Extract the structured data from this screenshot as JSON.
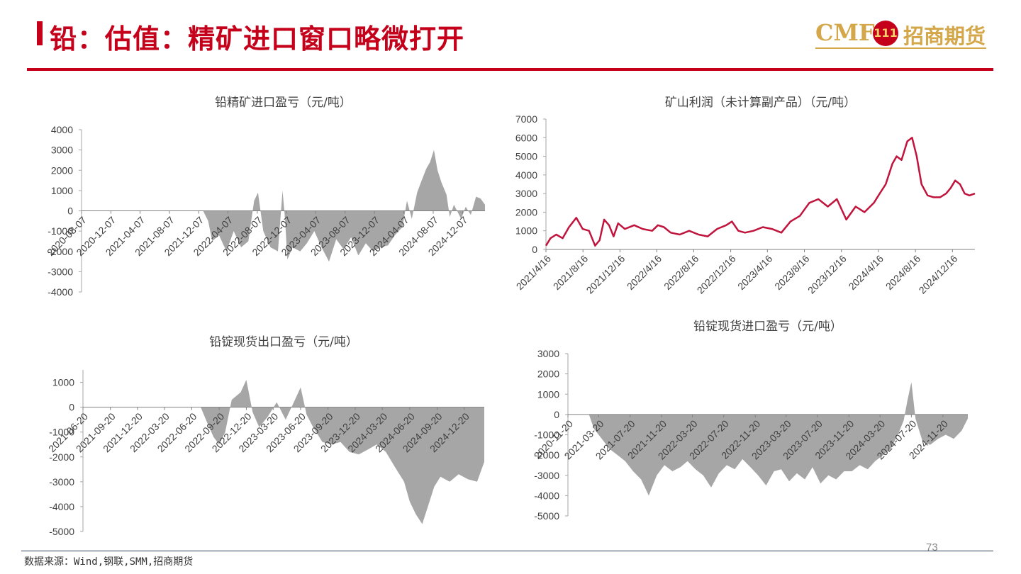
{
  "header": {
    "title": "铅：估值：精矿进口窗口略微打开",
    "logo_text": "CMF",
    "logo_emblem": "111",
    "logo_company": "招商期货"
  },
  "footer": {
    "source": "数据来源：Wind,钢联,SMM,招商期货",
    "page_number": "73"
  },
  "colors": {
    "accent": "#c4001a",
    "logo_gold": "#d4a84a",
    "area_fill": "#a6a6a6",
    "line": "#c0143c"
  },
  "chart_data": [
    {
      "id": "ore-import",
      "type": "area",
      "title": "铅精矿进口盈亏（元/吨）",
      "xlabel": "",
      "ylabel": "",
      "ylim": [
        -4000,
        4000
      ],
      "y_ticks": [
        4000,
        3000,
        2000,
        1000,
        0,
        -1000,
        -2000,
        -3000,
        -4000
      ],
      "x_ticks": [
        "2020-08-07",
        "2020-12-07",
        "2021-04-07",
        "2021-08-07",
        "2021-12-07",
        "2022-04-07",
        "2022-08-07",
        "2022-12-07",
        "2023-04-07",
        "2023-08-07",
        "2023-12-07",
        "2024-04-07",
        "2024-08-07",
        "2024-12-07"
      ],
      "x_range": [
        "2020-08-07",
        "2025-03-10"
      ],
      "grid": false,
      "x": [
        "2020-08-07",
        "2021-12-25",
        "2022-01-15",
        "2022-02-01",
        "2022-03-01",
        "2022-04-01",
        "2022-05-01",
        "2022-06-01",
        "2022-07-01",
        "2022-07-25",
        "2022-08-10",
        "2022-09-01",
        "2022-10-01",
        "2022-11-01",
        "2022-11-20",
        "2022-12-01",
        "2022-12-10",
        "2023-01-01",
        "2023-02-01",
        "2023-03-01",
        "2023-04-01",
        "2023-05-01",
        "2023-06-01",
        "2023-07-01",
        "2023-08-01",
        "2023-09-01",
        "2023-10-01",
        "2023-11-01",
        "2023-12-01",
        "2024-01-01",
        "2024-02-01",
        "2024-03-01",
        "2024-04-01",
        "2024-04-20",
        "2024-05-10",
        "2024-06-01",
        "2024-06-20",
        "2024-07-10",
        "2024-07-25",
        "2024-08-10",
        "2024-08-25",
        "2024-09-10",
        "2024-10-01",
        "2024-10-15",
        "2024-11-01",
        "2024-12-01",
        "2024-12-20",
        "2025-01-10",
        "2025-02-01",
        "2025-02-20",
        "2025-03-10"
      ],
      "values": [
        0,
        0,
        -500,
        -1500,
        -1200,
        -2000,
        -1000,
        -1800,
        -1500,
        500,
        900,
        -1000,
        -1800,
        -2000,
        1000,
        -500,
        -2400,
        -1800,
        -2000,
        -1600,
        -1000,
        -1800,
        -2500,
        -1400,
        -1900,
        -1300,
        -2200,
        -1600,
        -2000,
        -1800,
        -1700,
        -1200,
        -800,
        500,
        -400,
        900,
        1500,
        2100,
        2400,
        3000,
        2000,
        1400,
        800,
        -300,
        300,
        -400,
        200,
        -200,
        700,
        600,
        300
      ]
    },
    {
      "id": "mine-profit",
      "type": "line",
      "title": "矿山利润（未计算副产品）（元/吨）",
      "xlabel": "",
      "ylabel": "",
      "ylim": [
        0,
        7000
      ],
      "y_ticks": [
        7000,
        6000,
        5000,
        4000,
        3000,
        2000,
        1000,
        0
      ],
      "x_ticks": [
        "2021/4/16",
        "2021/8/16",
        "2021/12/16",
        "2022/4/16",
        "2022/8/16",
        "2022/12/16",
        "2023/4/16",
        "2023/8/16",
        "2023/12/16",
        "2024/4/16",
        "2024/8/16",
        "2024/12/16"
      ],
      "x_range": [
        "2021-04-16",
        "2025-02-28"
      ],
      "grid": false,
      "x": [
        "2021-04-16",
        "2021-05-01",
        "2021-05-20",
        "2021-06-10",
        "2021-07-01",
        "2021-07-25",
        "2021-08-15",
        "2021-09-05",
        "2021-09-25",
        "2021-10-10",
        "2021-10-25",
        "2021-11-10",
        "2021-11-25",
        "2021-12-10",
        "2022-01-01",
        "2022-02-01",
        "2022-03-01",
        "2022-04-01",
        "2022-04-20",
        "2022-05-10",
        "2022-06-01",
        "2022-07-01",
        "2022-08-01",
        "2022-09-01",
        "2022-10-01",
        "2022-11-01",
        "2022-12-01",
        "2022-12-20",
        "2023-01-10",
        "2023-02-01",
        "2023-03-01",
        "2023-04-01",
        "2023-05-01",
        "2023-06-01",
        "2023-07-01",
        "2023-08-01",
        "2023-09-01",
        "2023-10-01",
        "2023-11-01",
        "2023-12-01",
        "2024-01-01",
        "2024-02-01",
        "2024-03-01",
        "2024-04-01",
        "2024-04-20",
        "2024-05-10",
        "2024-06-01",
        "2024-06-15",
        "2024-07-01",
        "2024-07-20",
        "2024-08-05",
        "2024-08-20",
        "2024-09-05",
        "2024-09-25",
        "2024-10-15",
        "2024-11-05",
        "2024-11-25",
        "2024-12-10",
        "2024-12-25",
        "2025-01-10",
        "2025-01-25",
        "2025-02-10",
        "2025-02-28"
      ],
      "values": [
        200,
        600,
        800,
        600,
        1200,
        1700,
        1100,
        1000,
        200,
        500,
        1600,
        1300,
        700,
        1400,
        1100,
        1300,
        1100,
        1000,
        1300,
        1200,
        900,
        800,
        1000,
        800,
        700,
        1100,
        1300,
        1500,
        1000,
        900,
        1000,
        1200,
        1100,
        900,
        1500,
        1800,
        2500,
        2700,
        2300,
        2700,
        1600,
        2300,
        2000,
        2500,
        3000,
        3500,
        4600,
        5000,
        4800,
        5800,
        6000,
        5000,
        3500,
        2900,
        2800,
        2800,
        3000,
        3300,
        3700,
        3500,
        3000,
        2900,
        3000
      ]
    },
    {
      "id": "ingot-export",
      "type": "area",
      "title": "铅锭现货出口盈亏（元/吨）",
      "xlabel": "",
      "ylabel": "",
      "ylim": [
        -5000,
        1500
      ],
      "y_ticks": [
        1000,
        0,
        -1000,
        -2000,
        -3000,
        -4000,
        -5000
      ],
      "x_ticks": [
        "2021-06-20",
        "2021-09-20",
        "2021-12-20",
        "2022-03-20",
        "2022-06-20",
        "2022-09-20",
        "2022-12-20",
        "2023-03-20",
        "2023-06-20",
        "2023-09-20",
        "2023-12-20",
        "2024-03-20",
        "2024-06-20",
        "2024-09-20",
        "2024-12-20"
      ],
      "x_range": [
        "2021-06-20",
        "2025-02-25"
      ],
      "grid": false,
      "x": [
        "2021-06-20",
        "2022-07-20",
        "2022-08-10",
        "2022-09-01",
        "2022-09-20",
        "2022-10-10",
        "2022-11-01",
        "2022-12-01",
        "2022-12-20",
        "2023-01-10",
        "2023-02-01",
        "2023-03-01",
        "2023-04-01",
        "2023-05-01",
        "2023-06-01",
        "2023-06-20",
        "2023-07-10",
        "2023-08-01",
        "2023-09-01",
        "2023-10-01",
        "2023-11-01",
        "2023-12-01",
        "2024-01-01",
        "2024-02-01",
        "2024-03-01",
        "2024-04-01",
        "2024-05-01",
        "2024-06-01",
        "2024-06-20",
        "2024-07-10",
        "2024-08-01",
        "2024-08-20",
        "2024-09-10",
        "2024-10-01",
        "2024-11-01",
        "2024-12-01",
        "2025-01-01",
        "2025-02-01",
        "2025-02-25"
      ],
      "values": [
        0,
        0,
        -600,
        -1200,
        -1500,
        -1000,
        300,
        600,
        1100,
        -200,
        -800,
        -400,
        200,
        -500,
        300,
        800,
        -300,
        -800,
        -1400,
        -1500,
        -1400,
        -1800,
        -1900,
        -1700,
        -1500,
        -1800,
        -2400,
        -3000,
        -3800,
        -4300,
        -4700,
        -4000,
        -3200,
        -2800,
        -3000,
        -2700,
        -2900,
        -3000,
        -2200
      ]
    },
    {
      "id": "ingot-import",
      "type": "area",
      "title": "铅锭现货进口盈亏（元/吨）",
      "xlabel": "",
      "ylabel": "",
      "ylim": [
        -5000,
        3000
      ],
      "y_ticks": [
        3000,
        2000,
        1000,
        0,
        -1000,
        -2000,
        -3000,
        -4000,
        -5000
      ],
      "x_ticks": [
        "2020-11-20",
        "2021-03-20",
        "2021-07-20",
        "2021-11-20",
        "2022-03-20",
        "2022-07-20",
        "2022-11-20",
        "2023-03-20",
        "2023-07-20",
        "2023-11-20",
        "2024-03-20",
        "2024-07-20",
        "2024-11-20"
      ],
      "x_range": [
        "2020-11-20",
        "2025-02-25"
      ],
      "grid": false,
      "x": [
        "2020-11-20",
        "2021-02-10",
        "2021-03-01",
        "2021-04-01",
        "2021-05-01",
        "2021-06-01",
        "2021-07-01",
        "2021-08-01",
        "2021-09-01",
        "2021-10-01",
        "2021-11-01",
        "2021-12-01",
        "2022-01-01",
        "2022-02-01",
        "2022-03-01",
        "2022-04-01",
        "2022-05-01",
        "2022-06-01",
        "2022-07-01",
        "2022-08-01",
        "2022-09-01",
        "2022-10-01",
        "2022-11-01",
        "2022-12-01",
        "2023-01-01",
        "2023-02-01",
        "2023-03-01",
        "2023-04-01",
        "2023-05-01",
        "2023-06-01",
        "2023-07-01",
        "2023-08-01",
        "2023-09-01",
        "2023-10-01",
        "2023-11-01",
        "2023-12-01",
        "2024-01-01",
        "2024-02-01",
        "2024-03-01",
        "2024-04-01",
        "2024-05-01",
        "2024-06-01",
        "2024-06-20",
        "2024-07-05",
        "2024-07-20",
        "2024-08-05",
        "2024-09-01",
        "2024-10-01",
        "2024-11-01",
        "2024-12-01",
        "2025-01-01",
        "2025-02-01",
        "2025-02-25"
      ],
      "values": [
        0,
        0,
        -700,
        -1200,
        -1700,
        -2000,
        -2300,
        -2800,
        -3200,
        -4000,
        -3000,
        -2500,
        -2800,
        -2600,
        -2300,
        -2700,
        -3000,
        -3600,
        -2900,
        -2500,
        -2700,
        -2200,
        -2600,
        -3000,
        -3500,
        -2800,
        -2700,
        -3300,
        -2900,
        -3200,
        -2600,
        -3400,
        -3000,
        -3200,
        -2800,
        -2800,
        -2500,
        -2700,
        -2300,
        -2000,
        -1700,
        -900,
        -300,
        700,
        1600,
        -200,
        -1300,
        -1500,
        -1200,
        -1000,
        -1200,
        -800,
        -200
      ]
    }
  ]
}
